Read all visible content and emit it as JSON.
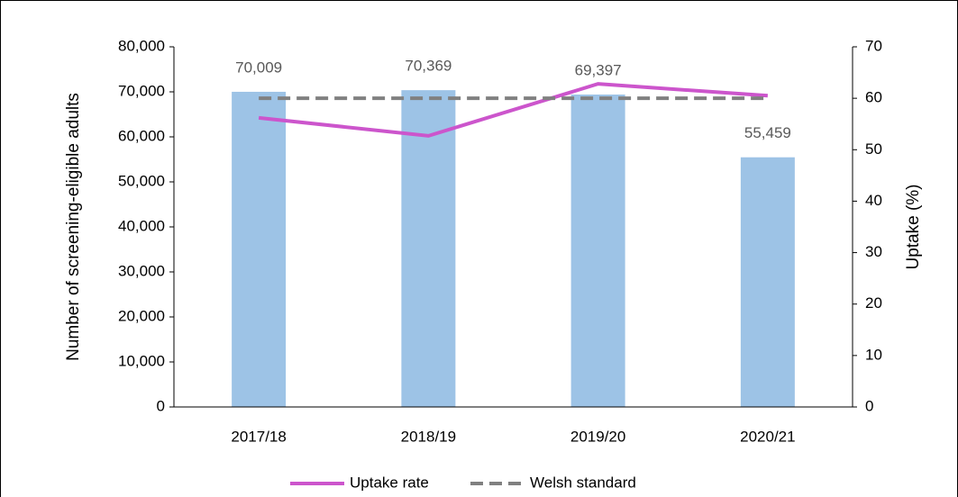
{
  "chart_data": {
    "type": "bar",
    "categories": [
      "2017/18",
      "2018/19",
      "2019/20",
      "2020/21"
    ],
    "values": [
      70009,
      70369,
      69397,
      55459
    ],
    "value_labels": [
      "70,009",
      "70,369",
      "69,397",
      "55,459"
    ],
    "color": "#9dc3e6",
    "ylabel": "Number of screening-eligible adults",
    "y2label": "Uptake (%)",
    "ylim": [
      0,
      80000
    ],
    "yticks": [
      0,
      {
        "value": 10000,
        "label": "10,000"
      },
      {
        "value": 20000,
        "label": "20,000"
      },
      {
        "value": 30000,
        "label": "30,000"
      },
      {
        "value": 40000,
        "label": "40,000"
      },
      {
        "value": 50000,
        "label": "50,000"
      },
      {
        "value": 60000,
        "label": "60,000"
      },
      {
        "value": 70000,
        "label": "70,000"
      },
      {
        "value": 80000,
        "label": "80,000"
      }
    ],
    "y2lim": [
      0,
      70
    ],
    "y2ticks": [
      0,
      10,
      20,
      30,
      40,
      50,
      60,
      70
    ],
    "series": [
      {
        "name": "Uptake rate",
        "color": "#cc55cc",
        "axis": "y2",
        "dashed": false,
        "values": [
          56.2,
          52.7,
          62.8,
          60.5
        ]
      },
      {
        "name": "Welsh standard",
        "color": "#808080",
        "axis": "y2",
        "dashed": true,
        "values": [
          60,
          60,
          60,
          60
        ]
      }
    ],
    "legend": "bottom",
    "grid": false
  }
}
